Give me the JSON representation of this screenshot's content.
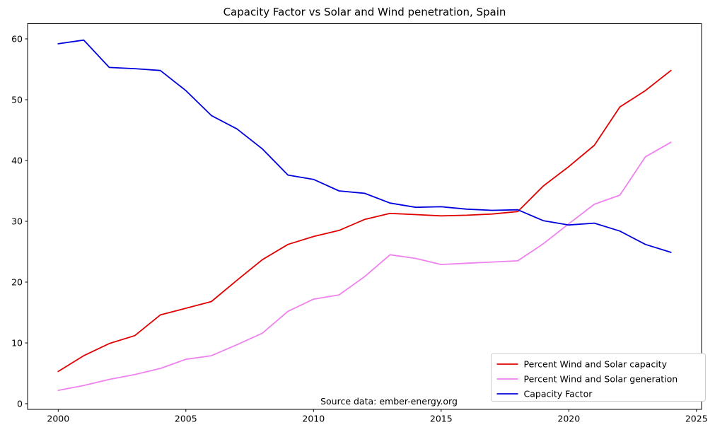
{
  "figure": {
    "source_note": "Source data: ember-energy.org"
  },
  "chart_data": {
    "type": "line",
    "title": "Capacity Factor vs Solar and Wind penetration, Spain",
    "xlabel": "",
    "ylabel": "",
    "x": [
      2000,
      2001,
      2002,
      2003,
      2004,
      2005,
      2006,
      2007,
      2008,
      2009,
      2010,
      2011,
      2012,
      2013,
      2014,
      2015,
      2016,
      2017,
      2018,
      2019,
      2020,
      2021,
      2022,
      2023,
      2024
    ],
    "series": [
      {
        "name": "Percent Wind and Solar capacity",
        "color": "#e00000",
        "values": [
          5.3,
          7.9,
          9.9,
          11.2,
          14.6,
          15.7,
          16.8,
          20.3,
          23.7,
          26.2,
          27.5,
          28.5,
          30.3,
          31.3,
          31.1,
          30.9,
          31.0,
          31.2,
          31.6,
          35.8,
          39.0,
          42.5,
          48.8,
          51.5,
          54.8
        ]
      },
      {
        "name": "Percent Wind and Solar generation",
        "color": "#ee82ee",
        "values": [
          2.2,
          3.0,
          4.0,
          4.8,
          5.8,
          7.3,
          7.9,
          9.7,
          11.6,
          15.2,
          17.2,
          17.9,
          20.9,
          24.5,
          23.9,
          22.9,
          23.1,
          23.3,
          23.5,
          26.3,
          29.6,
          32.8,
          34.3,
          40.6,
          43.0
        ]
      },
      {
        "name": "Capacity Factor",
        "color": "#0000dd",
        "values": [
          59.2,
          59.8,
          55.3,
          55.1,
          54.8,
          51.5,
          47.4,
          45.2,
          41.9,
          37.6,
          36.9,
          35.0,
          34.6,
          33.0,
          32.3,
          32.4,
          32.0,
          31.8,
          31.9,
          30.1,
          29.4,
          29.7,
          28.4,
          26.2,
          24.9
        ]
      }
    ],
    "xlim": [
      1998.8,
      2025.2
    ],
    "ylim": [
      -0.93,
      62.5
    ],
    "xticks": [
      2000,
      2005,
      2010,
      2015,
      2020,
      2025
    ],
    "yticks": [
      0,
      10,
      20,
      30,
      40,
      50,
      60
    ],
    "grid": false,
    "legend_position": "lower right"
  }
}
